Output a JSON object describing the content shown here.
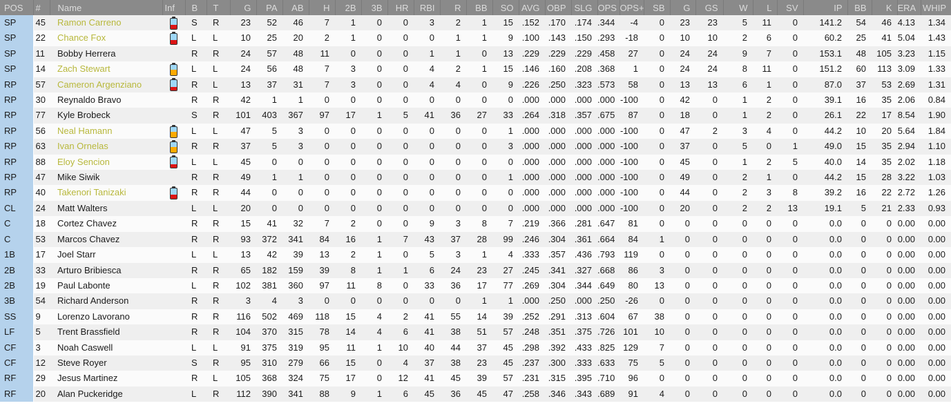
{
  "colors": {
    "header_bg": "#8a8a8a",
    "header_text": "#dcdcdc",
    "header_divider": "#7a7a7a",
    "pos_col_bg": "#b5d2ec",
    "row_odd_bg": "#efefef",
    "row_even_bg": "#fbfbfb",
    "text": "#1b1b1b",
    "name_highlight": "#b8b83c",
    "battery_blue": "#9ed7f7",
    "battery_red": "#dd1515",
    "battery_orange": "#ffaa00",
    "battery_border": "#333333"
  },
  "icons": {
    "battery_low": "stamina-battery-icon-red",
    "battery_medium": "stamina-battery-icon-orange"
  },
  "table": {
    "columns": [
      {
        "id": "pos",
        "label": "POS",
        "align": "left",
        "w": 48
      },
      {
        "id": "num",
        "label": "#",
        "align": "left",
        "w": 24
      },
      {
        "id": "name",
        "label": "Name",
        "align": "left",
        "w": 163
      },
      {
        "id": "inf",
        "label": "Inf",
        "align": "left",
        "w": 33
      },
      {
        "id": "b",
        "label": "B",
        "align": "left",
        "w": 31
      },
      {
        "id": "t",
        "label": "T",
        "align": "left",
        "w": 34
      },
      {
        "id": "g",
        "label": "G",
        "align": "right",
        "w": 38,
        "i": 0
      },
      {
        "id": "pa",
        "label": "PA",
        "align": "right",
        "w": 38,
        "i": 1
      },
      {
        "id": "ab",
        "label": "AB",
        "align": "right",
        "w": 38,
        "i": 2
      },
      {
        "id": "h",
        "label": "H",
        "align": "right",
        "w": 38,
        "i": 3
      },
      {
        "id": "2b",
        "label": "2B",
        "align": "right",
        "w": 38,
        "i": 4
      },
      {
        "id": "3b",
        "label": "3B",
        "align": "right",
        "w": 38,
        "i": 5
      },
      {
        "id": "hr",
        "label": "HR",
        "align": "right",
        "w": 38,
        "i": 6
      },
      {
        "id": "rbi",
        "label": "RBI",
        "align": "right",
        "w": 38,
        "i": 7
      },
      {
        "id": "r",
        "label": "R",
        "align": "right",
        "w": 38,
        "i": 8
      },
      {
        "id": "bb",
        "label": "BB",
        "align": "right",
        "w": 38,
        "i": 9
      },
      {
        "id": "so",
        "label": "SO",
        "align": "right",
        "w": 38,
        "i": 10
      },
      {
        "id": "avg",
        "label": "AVG",
        "align": "right",
        "w": 38,
        "i": 11
      },
      {
        "id": "obp",
        "label": "OBP",
        "align": "right",
        "w": 38,
        "i": 12
      },
      {
        "id": "slg",
        "label": "SLG",
        "align": "right",
        "w": 38,
        "i": 13
      },
      {
        "id": "ops",
        "label": "OPS",
        "align": "right",
        "w": 32,
        "i": 14
      },
      {
        "id": "ops-plus",
        "label": "OPS+",
        "align": "right",
        "w": 35,
        "i": 15
      },
      {
        "id": "sb",
        "label": "SB",
        "align": "right",
        "w": 38,
        "i": 16
      },
      {
        "id": "g-pitching",
        "label": "G",
        "align": "right",
        "w": 37,
        "i": 17
      },
      {
        "id": "gs",
        "label": "GS",
        "align": "right",
        "w": 40,
        "i": 18
      },
      {
        "id": "w",
        "label": "W",
        "align": "right",
        "w": 43,
        "i": 19
      },
      {
        "id": "l",
        "label": "L",
        "align": "right",
        "w": 35,
        "i": 20
      },
      {
        "id": "sv",
        "label": "SV",
        "align": "right",
        "w": 38,
        "i": 21
      },
      {
        "id": "ip",
        "label": "IP",
        "align": "right",
        "w": 64,
        "i": 22
      },
      {
        "id": "bb-pitching",
        "label": "BB",
        "align": "right",
        "w": 35,
        "i": 23
      },
      {
        "id": "k",
        "label": "K",
        "align": "right",
        "w": 37,
        "i": 24
      },
      {
        "id": "era",
        "label": "ERA",
        "align": "right",
        "w": 34,
        "i": 25
      },
      {
        "id": "whip",
        "label": "WHIP",
        "align": "right",
        "w": 44,
        "i": 26
      }
    ],
    "rows": [
      {
        "pos": "SP",
        "num": "45",
        "name": "Ramon Carreno",
        "highlight": true,
        "battery": "red",
        "bats": "S",
        "throws": "R",
        "stats": [
          23,
          52,
          46,
          7,
          1,
          0,
          0,
          3,
          2,
          1,
          15,
          ".152",
          ".170",
          ".174",
          ".344",
          -4,
          0,
          23,
          23,
          5,
          11,
          0,
          "141.2",
          54,
          46,
          "4.13",
          "1.34"
        ]
      },
      {
        "pos": "SP",
        "num": "22",
        "name": "Chance Fox",
        "highlight": true,
        "battery": "red",
        "bats": "L",
        "throws": "L",
        "stats": [
          10,
          25,
          20,
          2,
          1,
          0,
          0,
          0,
          1,
          1,
          9,
          ".100",
          ".143",
          ".150",
          ".293",
          -18,
          0,
          10,
          10,
          2,
          6,
          0,
          "60.2",
          25,
          41,
          "5.04",
          "1.43"
        ]
      },
      {
        "pos": "SP",
        "num": "11",
        "name": "Bobby Herrera",
        "highlight": false,
        "battery": null,
        "bats": "R",
        "throws": "R",
        "stats": [
          24,
          57,
          48,
          11,
          0,
          0,
          0,
          1,
          1,
          0,
          13,
          ".229",
          ".229",
          ".229",
          ".458",
          27,
          0,
          24,
          24,
          9,
          7,
          0,
          "153.1",
          48,
          105,
          "3.23",
          "1.15"
        ]
      },
      {
        "pos": "SP",
        "num": "14",
        "name": "Zach Stewart",
        "highlight": true,
        "battery": "orange",
        "bats": "L",
        "throws": "L",
        "stats": [
          24,
          56,
          48,
          7,
          3,
          0,
          0,
          4,
          2,
          1,
          15,
          ".146",
          ".160",
          ".208",
          ".368",
          1,
          0,
          24,
          24,
          8,
          11,
          0,
          "151.2",
          60,
          113,
          "3.09",
          "1.33"
        ]
      },
      {
        "pos": "RP",
        "num": "57",
        "name": "Cameron Argenziano",
        "highlight": true,
        "battery": "red",
        "bats": "R",
        "throws": "L",
        "stats": [
          13,
          37,
          31,
          7,
          3,
          0,
          0,
          4,
          4,
          0,
          9,
          ".226",
          ".250",
          ".323",
          ".573",
          58,
          0,
          13,
          13,
          6,
          1,
          0,
          "87.0",
          37,
          53,
          "2.69",
          "1.31"
        ]
      },
      {
        "pos": "RP",
        "num": "30",
        "name": "Reynaldo Bravo",
        "highlight": false,
        "battery": null,
        "bats": "R",
        "throws": "R",
        "stats": [
          42,
          1,
          1,
          0,
          0,
          0,
          0,
          0,
          0,
          0,
          0,
          ".000",
          ".000",
          ".000",
          ".000",
          -100,
          0,
          42,
          0,
          1,
          2,
          0,
          "39.1",
          16,
          35,
          "2.06",
          "0.84"
        ]
      },
      {
        "pos": "RP",
        "num": "77",
        "name": "Kyle Brobeck",
        "highlight": false,
        "battery": null,
        "bats": "S",
        "throws": "R",
        "stats": [
          101,
          403,
          367,
          97,
          17,
          1,
          5,
          41,
          36,
          27,
          33,
          ".264",
          ".318",
          ".357",
          ".675",
          87,
          0,
          18,
          0,
          1,
          2,
          0,
          "26.1",
          22,
          17,
          "8.54",
          "1.90"
        ]
      },
      {
        "pos": "RP",
        "num": "56",
        "name": "Neal Hamann",
        "highlight": true,
        "battery": "orange",
        "bats": "L",
        "throws": "L",
        "stats": [
          47,
          5,
          3,
          0,
          0,
          0,
          0,
          0,
          0,
          0,
          1,
          ".000",
          ".000",
          ".000",
          ".000",
          -100,
          0,
          47,
          2,
          3,
          4,
          0,
          "44.2",
          10,
          20,
          "5.64",
          "1.84"
        ]
      },
      {
        "pos": "RP",
        "num": "63",
        "name": "Ivan Ornelas",
        "highlight": true,
        "battery": "orange",
        "bats": "R",
        "throws": "R",
        "stats": [
          37,
          5,
          3,
          0,
          0,
          0,
          0,
          0,
          0,
          0,
          3,
          ".000",
          ".000",
          ".000",
          ".000",
          -100,
          0,
          37,
          0,
          5,
          0,
          1,
          "49.0",
          15,
          35,
          "2.94",
          "1.10"
        ]
      },
      {
        "pos": "RP",
        "num": "88",
        "name": "Eloy Sencion",
        "highlight": true,
        "battery": "red",
        "bats": "L",
        "throws": "L",
        "stats": [
          45,
          0,
          0,
          0,
          0,
          0,
          0,
          0,
          0,
          0,
          0,
          ".000",
          ".000",
          ".000",
          ".000",
          -100,
          0,
          45,
          0,
          1,
          2,
          5,
          "40.0",
          14,
          35,
          "2.02",
          "1.18"
        ]
      },
      {
        "pos": "RP",
        "num": "47",
        "name": "Mike Siwik",
        "highlight": false,
        "battery": null,
        "bats": "R",
        "throws": "R",
        "stats": [
          49,
          1,
          1,
          0,
          0,
          0,
          0,
          0,
          0,
          0,
          1,
          ".000",
          ".000",
          ".000",
          ".000",
          -100,
          0,
          49,
          0,
          2,
          1,
          0,
          "44.2",
          15,
          28,
          "3.22",
          "1.03"
        ]
      },
      {
        "pos": "RP",
        "num": "40",
        "name": "Takenori Tanizaki",
        "highlight": true,
        "battery": "red",
        "bats": "R",
        "throws": "R",
        "stats": [
          44,
          0,
          0,
          0,
          0,
          0,
          0,
          0,
          0,
          0,
          0,
          ".000",
          ".000",
          ".000",
          ".000",
          -100,
          0,
          44,
          0,
          2,
          3,
          8,
          "39.2",
          16,
          22,
          "2.72",
          "1.26"
        ]
      },
      {
        "pos": "CL",
        "num": "24",
        "name": "Matt Walters",
        "highlight": false,
        "battery": null,
        "bats": "L",
        "throws": "L",
        "stats": [
          20,
          0,
          0,
          0,
          0,
          0,
          0,
          0,
          0,
          0,
          0,
          ".000",
          ".000",
          ".000",
          ".000",
          -100,
          0,
          20,
          0,
          2,
          2,
          13,
          "19.1",
          5,
          21,
          "2.33",
          "0.93"
        ]
      },
      {
        "pos": "C",
        "num": "18",
        "name": "Cortez Chavez",
        "highlight": false,
        "battery": null,
        "bats": "R",
        "throws": "R",
        "stats": [
          15,
          41,
          32,
          7,
          2,
          0,
          0,
          9,
          3,
          8,
          7,
          ".219",
          ".366",
          ".281",
          ".647",
          81,
          0,
          0,
          0,
          0,
          0,
          0,
          "0.0",
          0,
          0,
          "0.00",
          "0.00"
        ]
      },
      {
        "pos": "C",
        "num": "53",
        "name": "Marcos Chavez",
        "highlight": false,
        "battery": null,
        "bats": "R",
        "throws": "R",
        "stats": [
          93,
          372,
          341,
          84,
          16,
          1,
          7,
          43,
          37,
          28,
          99,
          ".246",
          ".304",
          ".361",
          ".664",
          84,
          1,
          0,
          0,
          0,
          0,
          0,
          "0.0",
          0,
          0,
          "0.00",
          "0.00"
        ]
      },
      {
        "pos": "1B",
        "num": "17",
        "name": "Joel Starr",
        "highlight": false,
        "battery": null,
        "bats": "L",
        "throws": "L",
        "stats": [
          13,
          42,
          39,
          13,
          2,
          1,
          0,
          5,
          3,
          1,
          4,
          ".333",
          ".357",
          ".436",
          ".793",
          119,
          0,
          0,
          0,
          0,
          0,
          0,
          "0.0",
          0,
          0,
          "0.00",
          "0.00"
        ]
      },
      {
        "pos": "2B",
        "num": "33",
        "name": "Arturo Bribiesca",
        "highlight": false,
        "battery": null,
        "bats": "R",
        "throws": "R",
        "stats": [
          65,
          182,
          159,
          39,
          8,
          1,
          1,
          6,
          24,
          23,
          27,
          ".245",
          ".341",
          ".327",
          ".668",
          86,
          3,
          0,
          0,
          0,
          0,
          0,
          "0.0",
          0,
          0,
          "0.00",
          "0.00"
        ]
      },
      {
        "pos": "2B",
        "num": "19",
        "name": "Paul Labonte",
        "highlight": false,
        "battery": null,
        "bats": "L",
        "throws": "R",
        "stats": [
          102,
          381,
          360,
          97,
          11,
          8,
          0,
          33,
          36,
          17,
          77,
          ".269",
          ".304",
          ".344",
          ".649",
          80,
          13,
          0,
          0,
          0,
          0,
          0,
          "0.0",
          0,
          0,
          "0.00",
          "0.00"
        ]
      },
      {
        "pos": "3B",
        "num": "54",
        "name": "Richard Anderson",
        "highlight": false,
        "battery": null,
        "bats": "R",
        "throws": "R",
        "stats": [
          3,
          4,
          3,
          0,
          0,
          0,
          0,
          0,
          0,
          1,
          1,
          ".000",
          ".250",
          ".000",
          ".250",
          -26,
          0,
          0,
          0,
          0,
          0,
          0,
          "0.0",
          0,
          0,
          "0.00",
          "0.00"
        ]
      },
      {
        "pos": "SS",
        "num": "9",
        "name": "Lorenzo Lavorano",
        "highlight": false,
        "battery": null,
        "bats": "R",
        "throws": "R",
        "stats": [
          116,
          502,
          469,
          118,
          15,
          4,
          2,
          41,
          55,
          14,
          39,
          ".252",
          ".291",
          ".313",
          ".604",
          67,
          38,
          0,
          0,
          0,
          0,
          0,
          "0.0",
          0,
          0,
          "0.00",
          "0.00"
        ]
      },
      {
        "pos": "LF",
        "num": "5",
        "name": "Trent Brassfield",
        "highlight": false,
        "battery": null,
        "bats": "R",
        "throws": "R",
        "stats": [
          104,
          370,
          315,
          78,
          14,
          4,
          6,
          41,
          38,
          51,
          57,
          ".248",
          ".351",
          ".375",
          ".726",
          101,
          10,
          0,
          0,
          0,
          0,
          0,
          "0.0",
          0,
          0,
          "0.00",
          "0.00"
        ]
      },
      {
        "pos": "CF",
        "num": "3",
        "name": "Noah Caswell",
        "highlight": false,
        "battery": null,
        "bats": "L",
        "throws": "L",
        "stats": [
          91,
          375,
          319,
          95,
          11,
          1,
          10,
          40,
          44,
          37,
          45,
          ".298",
          ".392",
          ".433",
          ".825",
          129,
          7,
          0,
          0,
          0,
          0,
          0,
          "0.0",
          0,
          0,
          "0.00",
          "0.00"
        ]
      },
      {
        "pos": "CF",
        "num": "12",
        "name": "Steve Royer",
        "highlight": false,
        "battery": null,
        "bats": "S",
        "throws": "R",
        "stats": [
          95,
          310,
          279,
          66,
          15,
          0,
          4,
          37,
          38,
          23,
          45,
          ".237",
          ".300",
          ".333",
          ".633",
          75,
          5,
          0,
          0,
          0,
          0,
          0,
          "0.0",
          0,
          0,
          "0.00",
          "0.00"
        ]
      },
      {
        "pos": "RF",
        "num": "29",
        "name": "Jesus Martinez",
        "highlight": false,
        "battery": null,
        "bats": "R",
        "throws": "L",
        "stats": [
          105,
          368,
          324,
          75,
          17,
          0,
          12,
          41,
          45,
          39,
          57,
          ".231",
          ".315",
          ".395",
          ".710",
          96,
          0,
          0,
          0,
          0,
          0,
          0,
          "0.0",
          0,
          0,
          "0.00",
          "0.00"
        ]
      },
      {
        "pos": "RF",
        "num": "20",
        "name": "Alan Puckeridge",
        "highlight": false,
        "battery": null,
        "bats": "L",
        "throws": "R",
        "stats": [
          112,
          390,
          341,
          88,
          9,
          1,
          6,
          45,
          36,
          45,
          47,
          ".258",
          ".346",
          ".343",
          ".689",
          91,
          4,
          0,
          0,
          0,
          0,
          0,
          "0.0",
          0,
          0,
          "0.00",
          "0.00"
        ]
      }
    ]
  }
}
